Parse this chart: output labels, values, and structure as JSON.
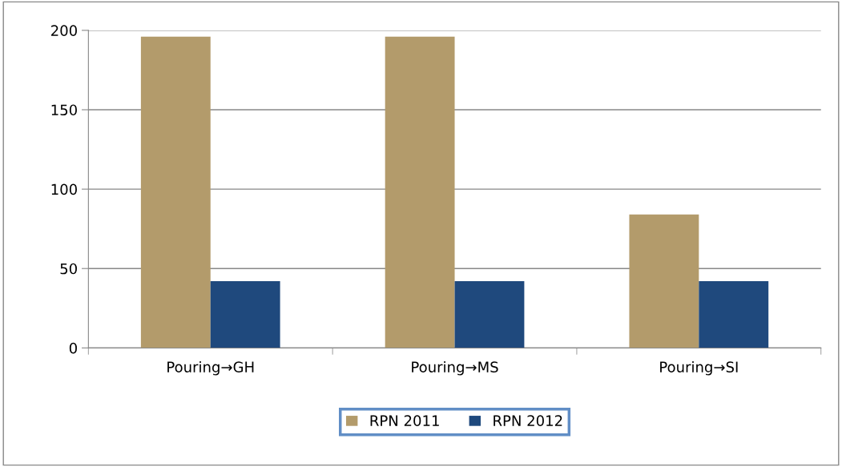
{
  "chart_data": {
    "type": "bar",
    "categories": [
      "Pouring→GH",
      "Pouring→MS",
      "Pouring→SI"
    ],
    "series": [
      {
        "name": "RPN 2011",
        "color": "#b39b6b",
        "values": [
          196,
          196,
          84
        ]
      },
      {
        "name": "RPN 2012",
        "color": "#1f497d",
        "values": [
          42,
          42,
          42
        ]
      }
    ],
    "ylim": [
      0,
      200
    ],
    "yticks": [
      0,
      50,
      100,
      150,
      200
    ],
    "grid": "y",
    "legend": "bottom"
  }
}
